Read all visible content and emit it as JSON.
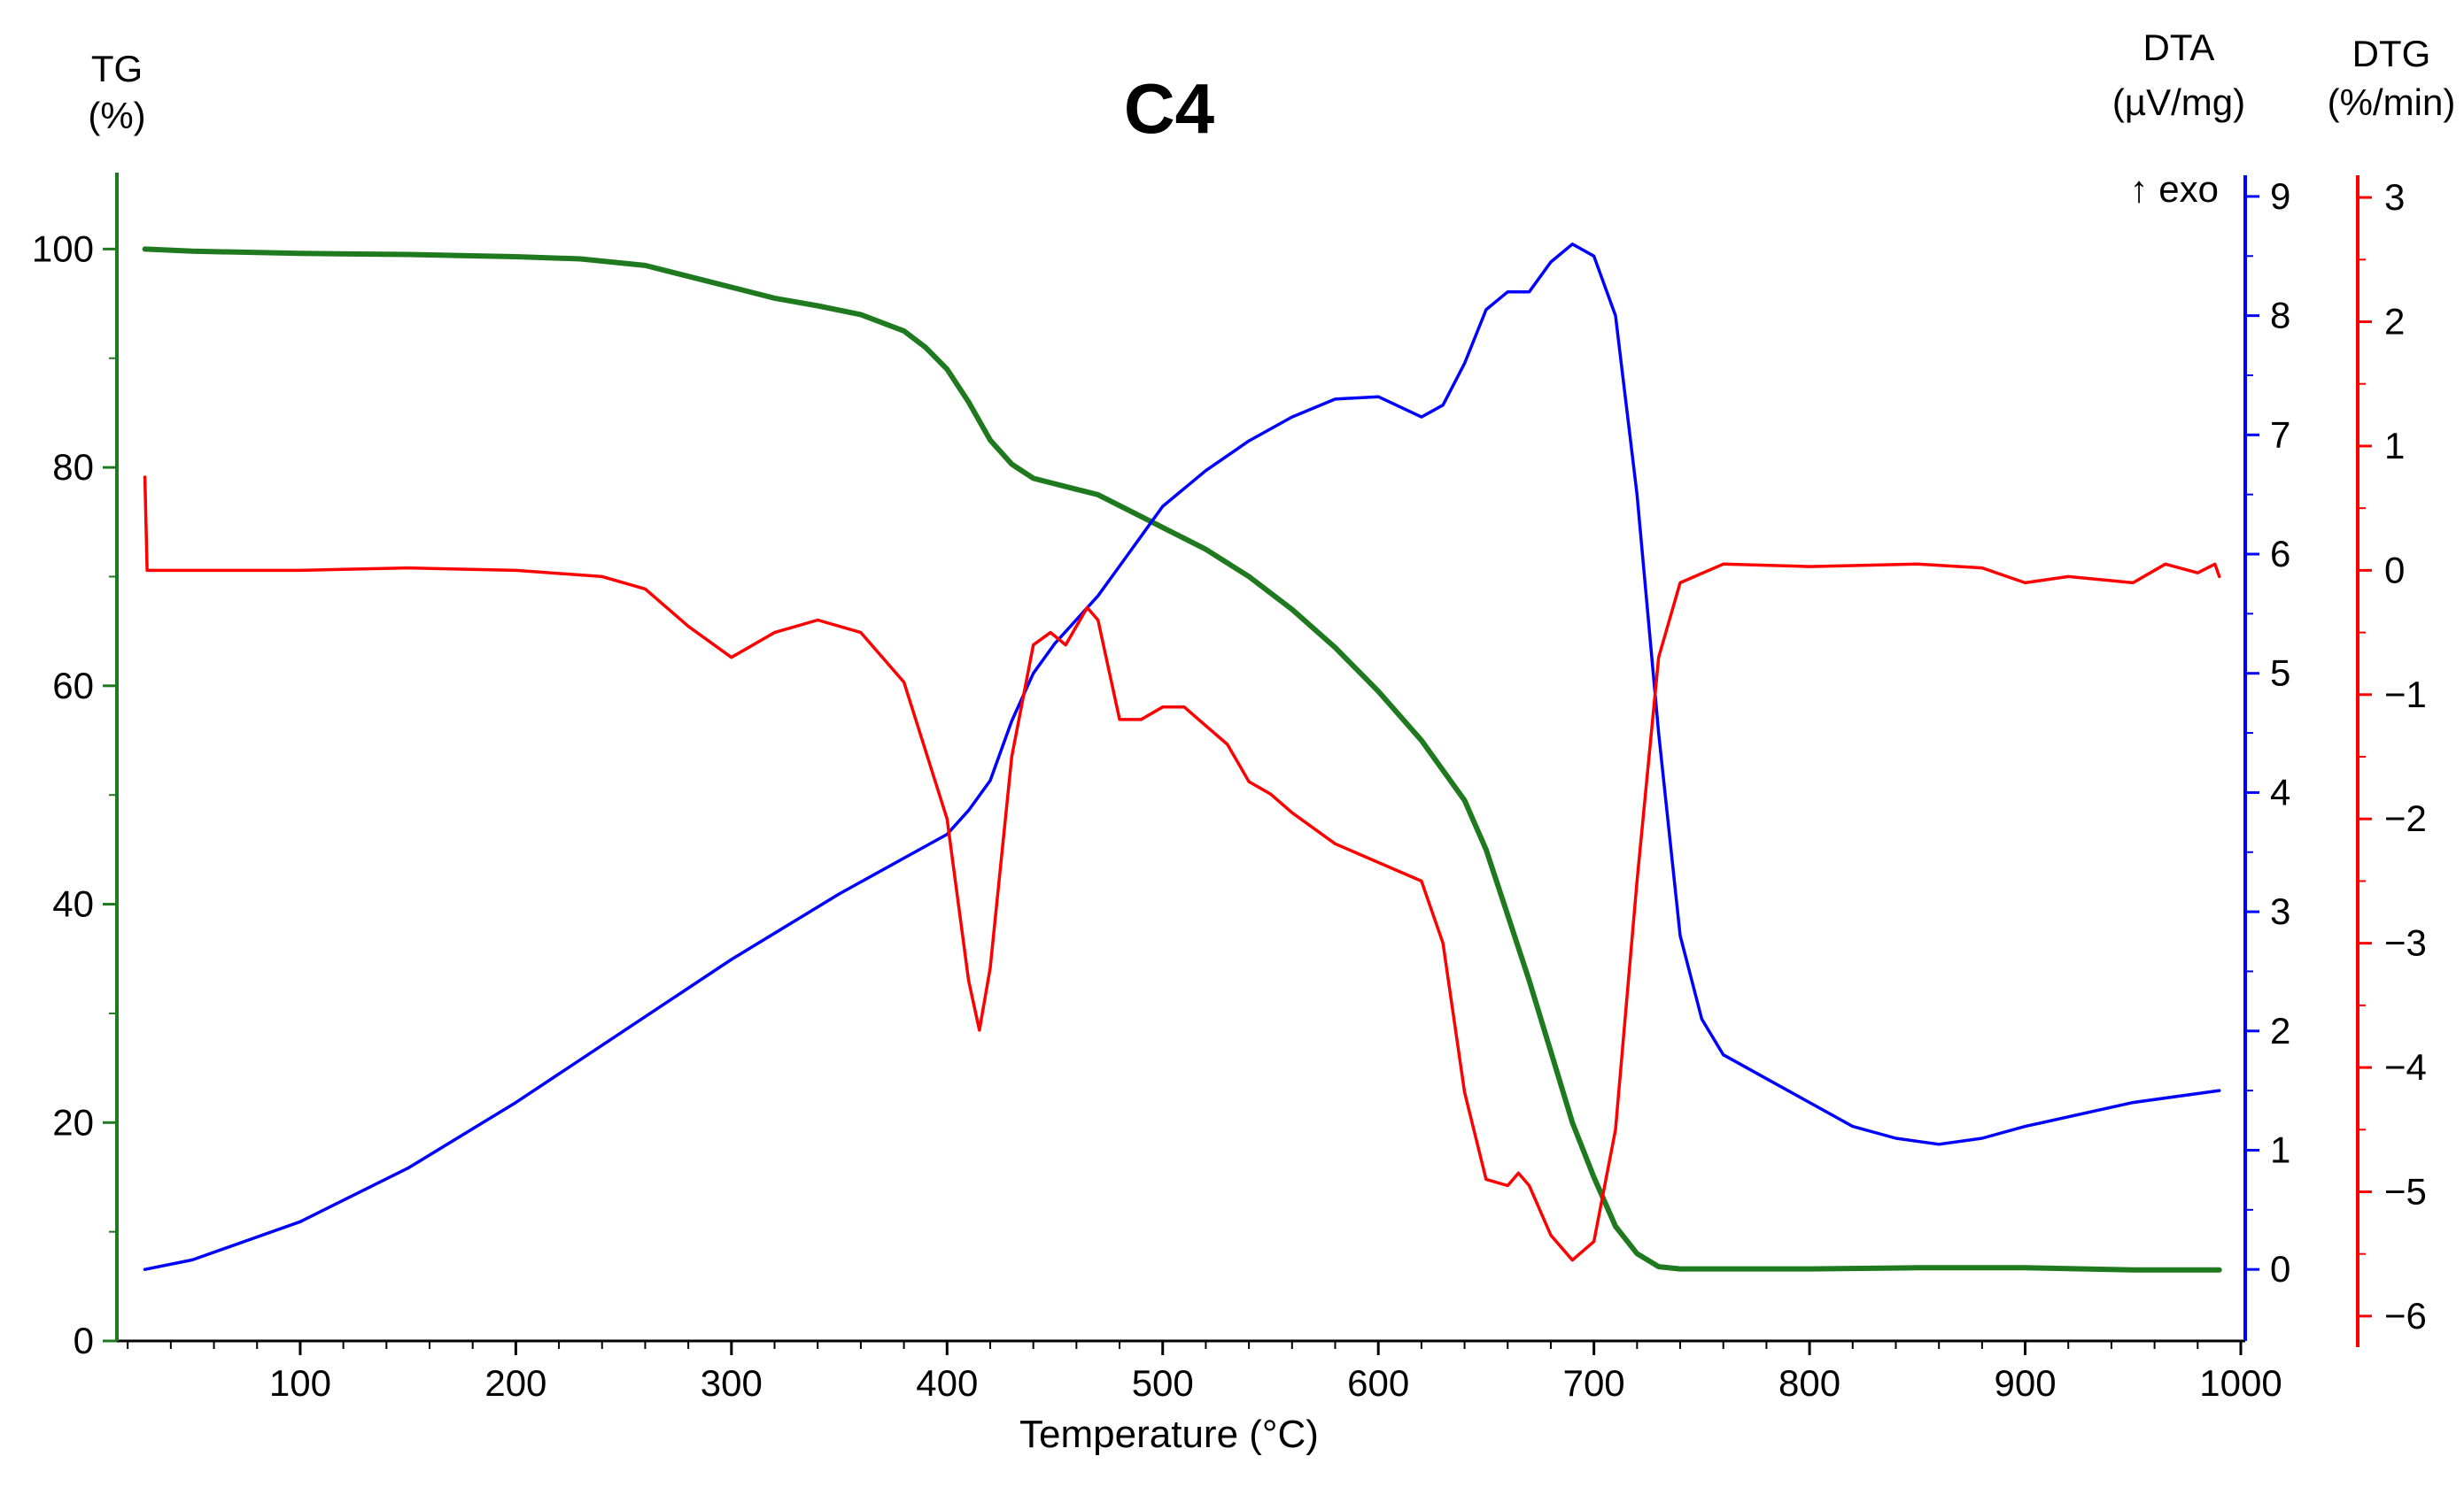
{
  "chart_data": {
    "type": "line",
    "title": "C4",
    "xlabel": "Temperature (°C)",
    "xlim": [
      15,
      1000
    ],
    "x_ticks": [
      100,
      200,
      300,
      400,
      500,
      600,
      700,
      800,
      900,
      1000
    ],
    "annotation": "↑ exo",
    "axes": {
      "tg": {
        "label_line1": "TG",
        "label_line2": "(%)",
        "ylim": [
          0,
          107
        ],
        "ticks": [
          0,
          20,
          40,
          60,
          80,
          100
        ],
        "color": "#1f7a1f"
      },
      "dta": {
        "label_line1": "DTA",
        "label_line2": "(µV/mg)",
        "ylim": [
          -0.6,
          9.2
        ],
        "ticks": [
          0,
          1,
          2,
          3,
          4,
          5,
          6,
          7,
          8,
          9
        ],
        "color": "#0000ff"
      },
      "dtg": {
        "label_line1": "DTG",
        "label_line2": "(%/min)",
        "ylim": [
          -6.2,
          3.2
        ],
        "ticks": [
          -6,
          -5,
          -4,
          -3,
          -2,
          -1,
          0,
          1,
          2,
          3
        ],
        "color": "#ff0000"
      }
    },
    "series": [
      {
        "name": "TG",
        "axis": "tg",
        "color": "#1f7a1f",
        "points": [
          [
            28,
            100
          ],
          [
            50,
            99.8
          ],
          [
            100,
            99.6
          ],
          [
            150,
            99.5
          ],
          [
            200,
            99.3
          ],
          [
            230,
            99.1
          ],
          [
            260,
            98.5
          ],
          [
            280,
            97.5
          ],
          [
            300,
            96.5
          ],
          [
            320,
            95.5
          ],
          [
            340,
            94.8
          ],
          [
            360,
            94
          ],
          [
            380,
            92.5
          ],
          [
            390,
            91
          ],
          [
            400,
            89
          ],
          [
            410,
            86
          ],
          [
            420,
            82.5
          ],
          [
            430,
            80.3
          ],
          [
            440,
            79
          ],
          [
            450,
            78.5
          ],
          [
            460,
            78
          ],
          [
            470,
            77.5
          ],
          [
            480,
            76.5
          ],
          [
            490,
            75.5
          ],
          [
            500,
            74.5
          ],
          [
            520,
            72.5
          ],
          [
            540,
            70
          ],
          [
            560,
            67
          ],
          [
            580,
            63.5
          ],
          [
            600,
            59.5
          ],
          [
            620,
            55
          ],
          [
            640,
            49.5
          ],
          [
            650,
            45
          ],
          [
            660,
            39
          ],
          [
            670,
            33
          ],
          [
            680,
            26.5
          ],
          [
            690,
            20
          ],
          [
            700,
            15
          ],
          [
            710,
            10.5
          ],
          [
            720,
            8
          ],
          [
            730,
            6.8
          ],
          [
            740,
            6.6
          ],
          [
            800,
            6.6
          ],
          [
            850,
            6.7
          ],
          [
            900,
            6.7
          ],
          [
            950,
            6.5
          ],
          [
            990,
            6.5
          ]
        ]
      },
      {
        "name": "DTA",
        "axis": "dta",
        "color": "#0000ff",
        "points": [
          [
            28,
            0
          ],
          [
            50,
            0.08
          ],
          [
            100,
            0.4
          ],
          [
            150,
            0.85
          ],
          [
            200,
            1.4
          ],
          [
            250,
            2
          ],
          [
            300,
            2.6
          ],
          [
            350,
            3.15
          ],
          [
            380,
            3.45
          ],
          [
            400,
            3.65
          ],
          [
            410,
            3.85
          ],
          [
            420,
            4.1
          ],
          [
            430,
            4.6
          ],
          [
            440,
            5
          ],
          [
            450,
            5.25
          ],
          [
            460,
            5.45
          ],
          [
            470,
            5.65
          ],
          [
            480,
            5.9
          ],
          [
            490,
            6.15
          ],
          [
            500,
            6.4
          ],
          [
            520,
            6.7
          ],
          [
            540,
            6.95
          ],
          [
            560,
            7.15
          ],
          [
            580,
            7.3
          ],
          [
            600,
            7.32
          ],
          [
            620,
            7.15
          ],
          [
            630,
            7.25
          ],
          [
            640,
            7.6
          ],
          [
            650,
            8.05
          ],
          [
            660,
            8.2
          ],
          [
            670,
            8.2
          ],
          [
            680,
            8.45
          ],
          [
            690,
            8.6
          ],
          [
            700,
            8.5
          ],
          [
            710,
            8
          ],
          [
            720,
            6.5
          ],
          [
            730,
            4.5
          ],
          [
            740,
            2.8
          ],
          [
            750,
            2.1
          ],
          [
            760,
            1.8
          ],
          [
            770,
            1.7
          ],
          [
            780,
            1.6
          ],
          [
            800,
            1.4
          ],
          [
            820,
            1.2
          ],
          [
            840,
            1.1
          ],
          [
            860,
            1.05
          ],
          [
            880,
            1.1
          ],
          [
            900,
            1.2
          ],
          [
            950,
            1.4
          ],
          [
            990,
            1.5
          ]
        ]
      },
      {
        "name": "DTG",
        "axis": "dtg",
        "color": "#ff0000",
        "points": [
          [
            28,
            0.75
          ],
          [
            29,
            0
          ],
          [
            100,
            0
          ],
          [
            150,
            0.02
          ],
          [
            200,
            0
          ],
          [
            240,
            -0.05
          ],
          [
            260,
            -0.15
          ],
          [
            280,
            -0.45
          ],
          [
            300,
            -0.7
          ],
          [
            320,
            -0.5
          ],
          [
            340,
            -0.4
          ],
          [
            360,
            -0.5
          ],
          [
            380,
            -0.9
          ],
          [
            400,
            -2
          ],
          [
            410,
            -3.3
          ],
          [
            415,
            -3.7
          ],
          [
            420,
            -3.2
          ],
          [
            430,
            -1.5
          ],
          [
            440,
            -0.6
          ],
          [
            448,
            -0.5
          ],
          [
            455,
            -0.6
          ],
          [
            465,
            -0.3
          ],
          [
            470,
            -0.4
          ],
          [
            480,
            -1.2
          ],
          [
            490,
            -1.2
          ],
          [
            500,
            -1.1
          ],
          [
            510,
            -1.1
          ],
          [
            520,
            -1.25
          ],
          [
            530,
            -1.4
          ],
          [
            540,
            -1.7
          ],
          [
            550,
            -1.8
          ],
          [
            560,
            -1.95
          ],
          [
            580,
            -2.2
          ],
          [
            600,
            -2.35
          ],
          [
            620,
            -2.5
          ],
          [
            630,
            -3
          ],
          [
            640,
            -4.2
          ],
          [
            650,
            -4.9
          ],
          [
            660,
            -4.95
          ],
          [
            665,
            -4.85
          ],
          [
            670,
            -4.95
          ],
          [
            680,
            -5.35
          ],
          [
            690,
            -5.55
          ],
          [
            700,
            -5.4
          ],
          [
            710,
            -4.5
          ],
          [
            720,
            -2.5
          ],
          [
            730,
            -0.7
          ],
          [
            740,
            -0.1
          ],
          [
            760,
            0.05
          ],
          [
            800,
            0.03
          ],
          [
            850,
            0.05
          ],
          [
            880,
            0.02
          ],
          [
            900,
            -0.1
          ],
          [
            920,
            -0.05
          ],
          [
            950,
            -0.1
          ],
          [
            965,
            0.05
          ],
          [
            980,
            -0.02
          ],
          [
            988,
            0.05
          ],
          [
            990,
            -0.05
          ]
        ]
      }
    ]
  }
}
